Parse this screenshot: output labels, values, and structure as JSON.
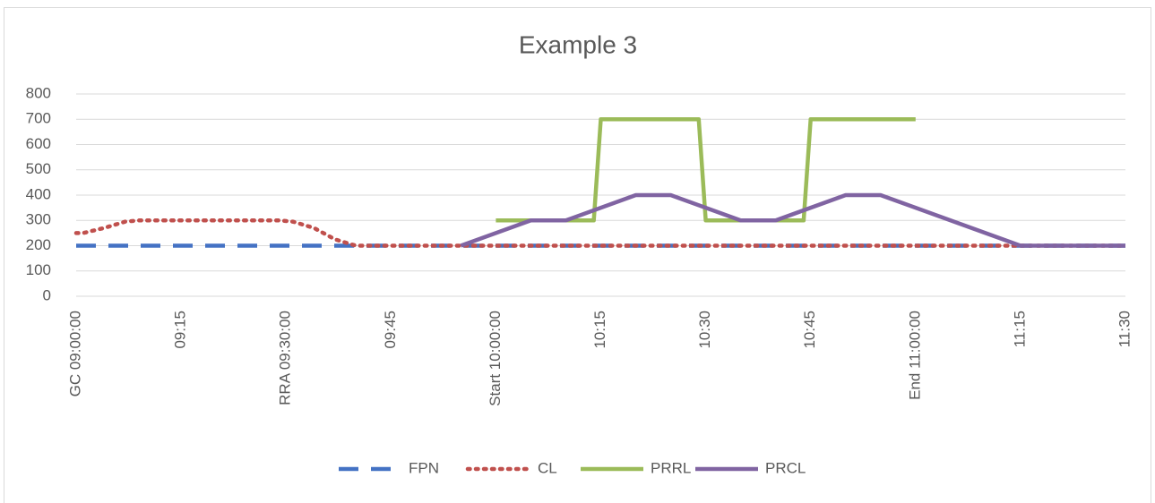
{
  "chart_data": {
    "type": "line",
    "title": "Example 3",
    "xlim": [
      540,
      690
    ],
    "xticks": [
      {
        "value": 540,
        "label": "GC 09:00:00"
      },
      {
        "value": 555,
        "label": "09:15"
      },
      {
        "value": 570,
        "label": "RRA 09:30:00"
      },
      {
        "value": 585,
        "label": "09:45"
      },
      {
        "value": 600,
        "label": "Start 10:00:00"
      },
      {
        "value": 615,
        "label": "10:15"
      },
      {
        "value": 630,
        "label": "10:30"
      },
      {
        "value": 645,
        "label": "10:45"
      },
      {
        "value": 660,
        "label": "End 11:00:00"
      },
      {
        "value": 675,
        "label": "11:15"
      },
      {
        "value": 690,
        "label": "11:30"
      }
    ],
    "ylim": [
      0,
      800
    ],
    "yticks": [
      0,
      100,
      200,
      300,
      400,
      500,
      600,
      700,
      800
    ],
    "grid": true,
    "legend": "bottom",
    "series": [
      {
        "name": "FPN",
        "color": "#4472c4",
        "style": "dashed",
        "x": [
          540,
          690
        ],
        "values": [
          200,
          200
        ]
      },
      {
        "name": "CL",
        "color": "#c0504d",
        "style": "dotted",
        "x": [
          540,
          541,
          544,
          547,
          549,
          569,
          571,
          574,
          577,
          580,
          690
        ],
        "values": [
          250,
          250,
          270,
          295,
          300,
          300,
          295,
          270,
          225,
          200,
          200
        ]
      },
      {
        "name": "PRRL",
        "color": "#9bbb59",
        "style": "solid",
        "x": [
          600,
          614,
          615,
          629,
          630,
          644,
          645,
          660
        ],
        "values": [
          300,
          300,
          700,
          700,
          300,
          300,
          700,
          700
        ]
      },
      {
        "name": "PRCL",
        "color": "#8064a2",
        "style": "solid",
        "x": [
          595,
          605,
          610,
          620,
          625,
          635,
          640,
          650,
          655,
          675,
          690
        ],
        "values": [
          200,
          300,
          300,
          400,
          400,
          300,
          300,
          400,
          400,
          200,
          200
        ]
      }
    ]
  }
}
